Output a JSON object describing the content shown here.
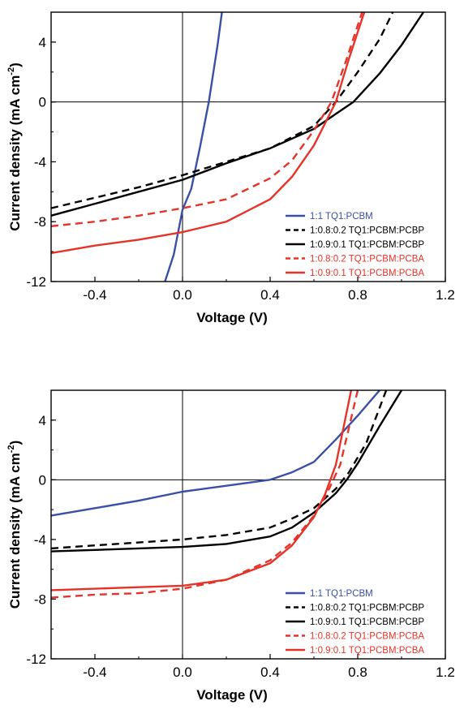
{
  "chart_data": [
    {
      "type": "line",
      "xlabel": "Voltage (V)",
      "ylabel_main": "Current density (mA cm",
      "ylabel_sup": "-2",
      "ylabel_close": ")",
      "xlim": [
        -0.6,
        1.2
      ],
      "ylim": [
        -12,
        6
      ],
      "xticks": [
        -0.4,
        0.0,
        0.4,
        0.8,
        1.2
      ],
      "xtick_labels": [
        "-0.4",
        "0.0",
        "0.4",
        "0.8",
        "1.2"
      ],
      "yticks": [
        -12,
        -8,
        -4,
        0,
        4
      ],
      "ytick_labels": [
        "-12",
        "-8",
        "-4",
        "0",
        "4"
      ],
      "legend_position": "bottom-right",
      "series": [
        {
          "name": "1:1 TQ1:PCBM",
          "color": "#3b4fa6",
          "dash": "solid",
          "x": [
            -0.08,
            -0.04,
            0.0,
            0.04,
            0.08,
            0.12,
            0.16,
            0.18
          ],
          "y": [
            -12,
            -10.2,
            -7.2,
            -5.8,
            -3.0,
            0.0,
            3.8,
            6.0
          ]
        },
        {
          "name": "1:0.8:0.2 TQ1:PCBM:PCBP",
          "color": "#000000",
          "dash": "dashed",
          "x": [
            -0.6,
            -0.4,
            -0.2,
            0.0,
            0.2,
            0.4,
            0.6,
            0.7,
            0.8,
            0.9,
            0.96
          ],
          "y": [
            -7.1,
            -6.4,
            -5.7,
            -4.9,
            -4.0,
            -3.1,
            -1.6,
            0.0,
            2.0,
            4.2,
            6.0
          ]
        },
        {
          "name": "1:0.9:0.1 TQ1:PCBM:PCBP",
          "color": "#000000",
          "dash": "solid",
          "x": [
            -0.6,
            -0.4,
            -0.2,
            0.0,
            0.2,
            0.4,
            0.6,
            0.7,
            0.78,
            0.9,
            1.0,
            1.1
          ],
          "y": [
            -7.6,
            -6.8,
            -6.0,
            -5.2,
            -4.1,
            -3.1,
            -1.8,
            -0.8,
            0.0,
            1.9,
            3.8,
            6.0
          ]
        },
        {
          "name": "1:0.8:0.2 TQ1:PCBM:PCBA",
          "color": "#e53329",
          "dash": "dashed",
          "x": [
            -0.6,
            -0.4,
            -0.2,
            0.0,
            0.2,
            0.4,
            0.5,
            0.6,
            0.68,
            0.75,
            0.82
          ],
          "y": [
            -8.3,
            -8.0,
            -7.6,
            -7.1,
            -6.5,
            -5.1,
            -3.9,
            -1.9,
            0.0,
            2.9,
            6.0
          ]
        },
        {
          "name": "1:0.9:0.1 TQ1:PCBM:PCBA",
          "color": "#e53329",
          "dash": "solid",
          "x": [
            -0.6,
            -0.4,
            -0.2,
            0.0,
            0.2,
            0.4,
            0.5,
            0.6,
            0.7,
            0.76,
            0.83
          ],
          "y": [
            -10.1,
            -9.6,
            -9.2,
            -8.7,
            -8.0,
            -6.5,
            -5.0,
            -2.9,
            0.0,
            2.9,
            6.0
          ]
        }
      ]
    },
    {
      "type": "line",
      "xlabel": "Voltage (V)",
      "ylabel_main": "Current density (mA cm",
      "ylabel_sup": "-2",
      "ylabel_close": ")",
      "xlim": [
        -0.6,
        1.2
      ],
      "ylim": [
        -12,
        6
      ],
      "xticks": [
        -0.4,
        0.0,
        0.4,
        0.8,
        1.2
      ],
      "xtick_labels": [
        "-0.4",
        "0.0",
        "0.4",
        "0.8",
        "1.2"
      ],
      "yticks": [
        -12,
        -8,
        -4,
        0,
        4
      ],
      "ytick_labels": [
        "-12",
        "-8",
        "-4",
        "0",
        "4"
      ],
      "legend_position": "bottom-right",
      "series": [
        {
          "name": "1:1 TQ1:PCBM",
          "color": "#3b4fa6",
          "dash": "solid",
          "x": [
            -0.6,
            -0.4,
            -0.2,
            0.0,
            0.2,
            0.4,
            0.5,
            0.6,
            0.7,
            0.8,
            0.9
          ],
          "y": [
            -2.4,
            -1.9,
            -1.4,
            -0.8,
            -0.4,
            0.0,
            0.5,
            1.2,
            2.7,
            4.3,
            6.0
          ]
        },
        {
          "name": "1:0.8:0.2 TQ1:PCBM:PCBP",
          "color": "#000000",
          "dash": "dashed",
          "x": [
            -0.6,
            -0.4,
            -0.2,
            0.0,
            0.2,
            0.4,
            0.5,
            0.6,
            0.7,
            0.76,
            0.84,
            0.93
          ],
          "y": [
            -4.6,
            -4.4,
            -4.2,
            -4.0,
            -3.7,
            -3.2,
            -2.6,
            -1.9,
            -0.6,
            0.5,
            2.5,
            6.0
          ]
        },
        {
          "name": "1:0.9:0.1 TQ1:PCBM:PCBP",
          "color": "#000000",
          "dash": "solid",
          "x": [
            -0.6,
            -0.4,
            -0.2,
            0.0,
            0.2,
            0.4,
            0.5,
            0.6,
            0.7,
            0.75,
            0.8,
            0.9,
            1.0
          ],
          "y": [
            -4.8,
            -4.7,
            -4.6,
            -4.5,
            -4.3,
            -3.8,
            -3.2,
            -2.2,
            -0.9,
            0.0,
            1.1,
            3.6,
            6.0
          ]
        },
        {
          "name": "1:0.8:0.2 TQ1:PCBM:PCBA",
          "color": "#e53329",
          "dash": "dashed",
          "x": [
            -0.6,
            -0.4,
            -0.2,
            0.0,
            0.2,
            0.4,
            0.5,
            0.6,
            0.66,
            0.72,
            0.8
          ],
          "y": [
            -7.9,
            -7.7,
            -7.6,
            -7.3,
            -6.7,
            -5.4,
            -4.2,
            -2.4,
            -0.9,
            1.0,
            6.0
          ]
        },
        {
          "name": "1:0.9:0.1 TQ1:PCBM:PCBA",
          "color": "#e53329",
          "dash": "solid",
          "x": [
            -0.6,
            -0.4,
            -0.2,
            0.0,
            0.2,
            0.4,
            0.5,
            0.6,
            0.65,
            0.7,
            0.77
          ],
          "y": [
            -7.4,
            -7.3,
            -7.2,
            -7.1,
            -6.7,
            -5.6,
            -4.4,
            -2.5,
            -1.0,
            1.0,
            6.0
          ]
        }
      ]
    }
  ]
}
